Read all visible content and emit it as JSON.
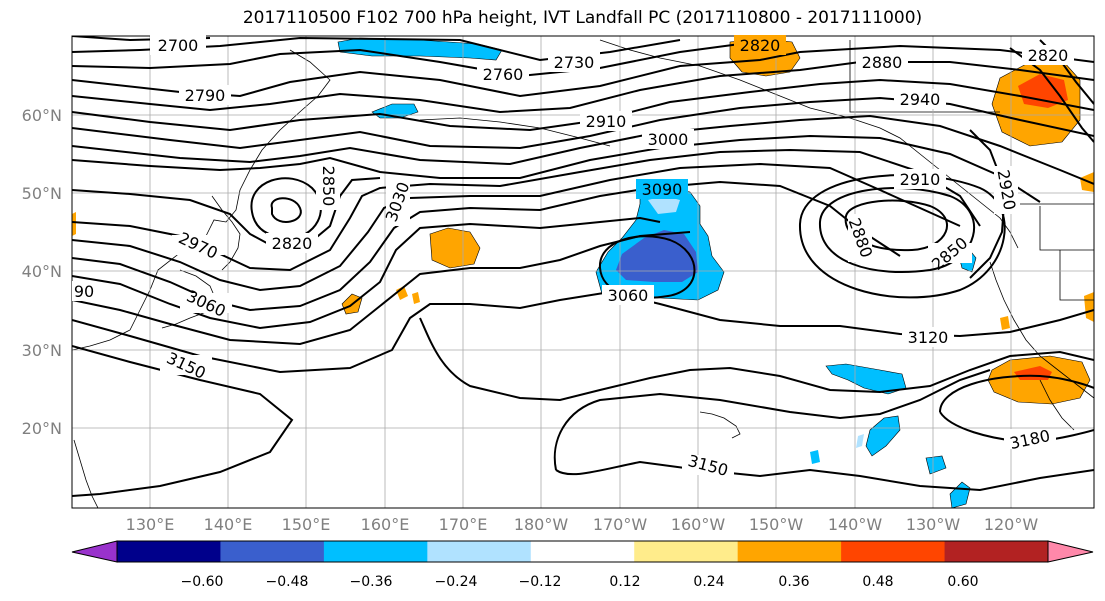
{
  "title": "2017110500 F102 700 hPa height, IVT Landfall PC (2017110800 - 2017111000)",
  "axes": {
    "lat_labels": [
      "60°N",
      "50°N",
      "40°N",
      "30°N",
      "20°N"
    ],
    "lon_labels": [
      "130°E",
      "140°E",
      "150°E",
      "160°E",
      "170°E",
      "180°W",
      "170°W",
      "160°W",
      "150°W",
      "140°W",
      "130°W",
      "120°W"
    ]
  },
  "colorbar": {
    "colors": [
      "#9932cc",
      "#00008b",
      "#3a5fcd",
      "#00bfff",
      "#b0e2ff",
      "#ffffff",
      "#ffec8b",
      "#ffa500",
      "#ff4500",
      "#b22222",
      "#ff88aa"
    ],
    "tick_labels": [
      "−0.60",
      "−0.48",
      "−0.36",
      "−0.24",
      "−0.12",
      "0.12",
      "0.24",
      "0.36",
      "0.48",
      "0.60"
    ]
  },
  "contour_labels": [
    "2700",
    "2760",
    "2730",
    "2820",
    "2880",
    "2820",
    "2790",
    "2940",
    "2910",
    "3000",
    "2850",
    "3090",
    "2910",
    "2920",
    "3030",
    "2880",
    "2970",
    "2820",
    "2850",
    "3060",
    "3060",
    "3150",
    "3120",
    "3180",
    "3150",
    "90"
  ]
}
